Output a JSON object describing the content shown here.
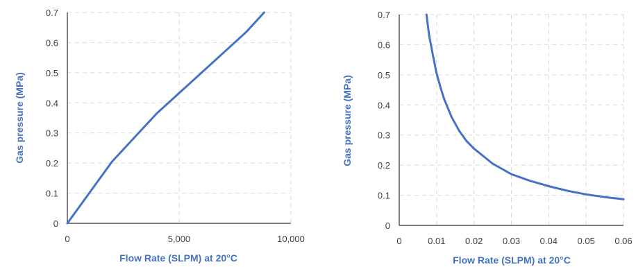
{
  "chart_data": [
    {
      "type": "line",
      "xlabel": "Flow Rate  (SLPM) at 20°C",
      "ylabel": "Gas pressure (MPa)",
      "xlim": [
        0,
        10000
      ],
      "ylim": [
        0,
        0.7
      ],
      "x_ticks": [
        0,
        5000,
        10000
      ],
      "x_tick_labels": [
        "0",
        "5,000",
        "10,000"
      ],
      "y_ticks": [
        0,
        0.1,
        0.2,
        0.3,
        0.4,
        0.5,
        0.6,
        0.7
      ],
      "y_tick_labels": [
        "0",
        "0.1",
        "0.2",
        "0.3",
        "0.4",
        "0.5",
        "0.6",
        "0.7"
      ],
      "grid": true,
      "series": [
        {
          "color": "#4472C4",
          "x": [
            0,
            2000,
            4000,
            6000,
            8000,
            8800
          ],
          "y": [
            0,
            0.205,
            0.365,
            0.5,
            0.635,
            0.7
          ]
        }
      ]
    },
    {
      "type": "line",
      "xlabel": "Flow Rate  (SLPM) at 20°C",
      "ylabel": "Gas pressure (MPa)",
      "xlim": [
        0,
        0.06
      ],
      "ylim": [
        0,
        0.7
      ],
      "x_ticks": [
        0,
        0.01,
        0.02,
        0.03,
        0.04,
        0.05,
        0.06
      ],
      "x_tick_labels": [
        "0",
        "0.01",
        "0.02",
        "0.03",
        "0.04",
        "0.05",
        "0.06"
      ],
      "y_ticks": [
        0,
        0.1,
        0.2,
        0.3,
        0.4,
        0.5,
        0.6,
        0.7
      ],
      "y_tick_labels": [
        "0",
        "0.1",
        "0.2",
        "0.3",
        "0.4",
        "0.5",
        "0.6",
        "0.7"
      ],
      "grid": true,
      "series": [
        {
          "color": "#4472C4",
          "x": [
            0.0073,
            0.008,
            0.009,
            0.01,
            0.011,
            0.012,
            0.014,
            0.016,
            0.018,
            0.02,
            0.025,
            0.03,
            0.035,
            0.04,
            0.045,
            0.05,
            0.055,
            0.06
          ],
          "y": [
            0.7,
            0.63,
            0.565,
            0.505,
            0.46,
            0.42,
            0.36,
            0.315,
            0.28,
            0.255,
            0.205,
            0.17,
            0.148,
            0.13,
            0.115,
            0.103,
            0.094,
            0.087
          ]
        }
      ]
    }
  ]
}
